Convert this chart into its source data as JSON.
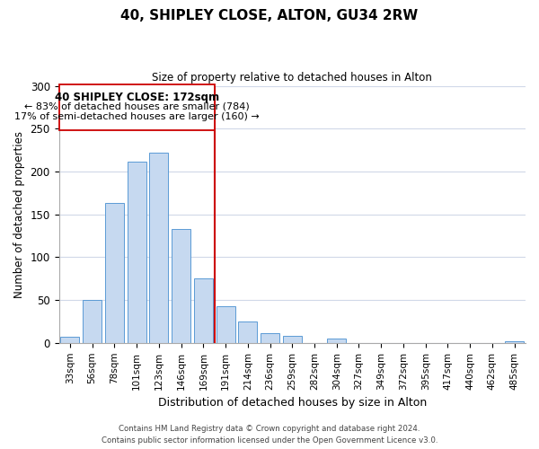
{
  "title": "40, SHIPLEY CLOSE, ALTON, GU34 2RW",
  "subtitle": "Size of property relative to detached houses in Alton",
  "xlabel": "Distribution of detached houses by size in Alton",
  "ylabel": "Number of detached properties",
  "categories": [
    "33sqm",
    "56sqm",
    "78sqm",
    "101sqm",
    "123sqm",
    "146sqm",
    "169sqm",
    "191sqm",
    "214sqm",
    "236sqm",
    "259sqm",
    "282sqm",
    "304sqm",
    "327sqm",
    "349sqm",
    "372sqm",
    "395sqm",
    "417sqm",
    "440sqm",
    "462sqm",
    "485sqm"
  ],
  "values": [
    7,
    50,
    163,
    212,
    222,
    133,
    75,
    43,
    25,
    11,
    8,
    0,
    5,
    0,
    0,
    0,
    0,
    0,
    0,
    0,
    2
  ],
  "bar_color": "#c6d9f0",
  "bar_edge_color": "#5b9bd5",
  "highlight_index": 6,
  "highlight_line_color": "#cc0000",
  "annotation_box_edge_color": "#cc0000",
  "annotation_text_line1": "40 SHIPLEY CLOSE: 172sqm",
  "annotation_text_line2": "← 83% of detached houses are smaller (784)",
  "annotation_text_line3": "17% of semi-detached houses are larger (160) →",
  "ylim": [
    0,
    300
  ],
  "yticks": [
    0,
    50,
    100,
    150,
    200,
    250,
    300
  ],
  "footer_line1": "Contains HM Land Registry data © Crown copyright and database right 2024.",
  "footer_line2": "Contains public sector information licensed under the Open Government Licence v3.0.",
  "background_color": "#ffffff",
  "grid_color": "#d0d8e8"
}
